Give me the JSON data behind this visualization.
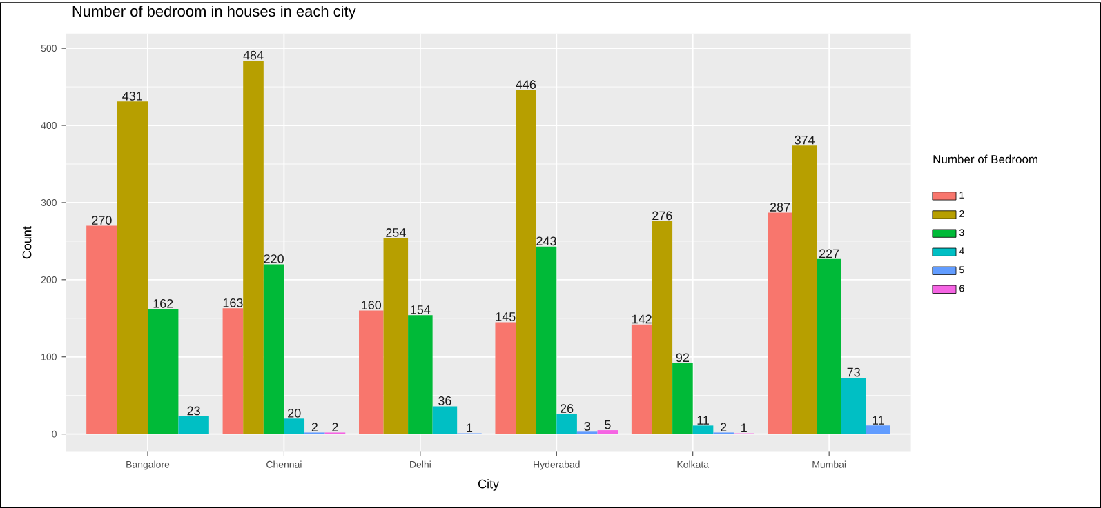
{
  "chart_data": {
    "type": "bar",
    "title": "Number of bedroom in houses in each city",
    "xlabel": "City",
    "ylabel": "Count",
    "legend_title": "Number of Bedroom",
    "categories": [
      "Bangalore",
      "Chennai",
      "Delhi",
      "Hyderabad",
      "Kolkata",
      "Mumbai"
    ],
    "series": [
      {
        "name": "1",
        "color": "#f8766d",
        "values": [
          270,
          163,
          160,
          145,
          142,
          287
        ]
      },
      {
        "name": "2",
        "color": "#b79f00",
        "values": [
          431,
          484,
          254,
          446,
          276,
          374
        ]
      },
      {
        "name": "3",
        "color": "#00ba38",
        "values": [
          162,
          220,
          154,
          243,
          92,
          227
        ]
      },
      {
        "name": "4",
        "color": "#00bfc4",
        "values": [
          23,
          20,
          36,
          26,
          11,
          73
        ]
      },
      {
        "name": "5",
        "color": "#619cff",
        "values": [
          null,
          2,
          1,
          3,
          2,
          11
        ]
      },
      {
        "name": "6",
        "color": "#f564e3",
        "values": [
          null,
          2,
          null,
          5,
          1,
          null
        ]
      }
    ],
    "ylim": [
      -23,
      519
    ],
    "yticks": [
      0,
      100,
      200,
      300,
      400,
      500
    ],
    "grid": true,
    "legend": "right",
    "data_labels": true
  }
}
